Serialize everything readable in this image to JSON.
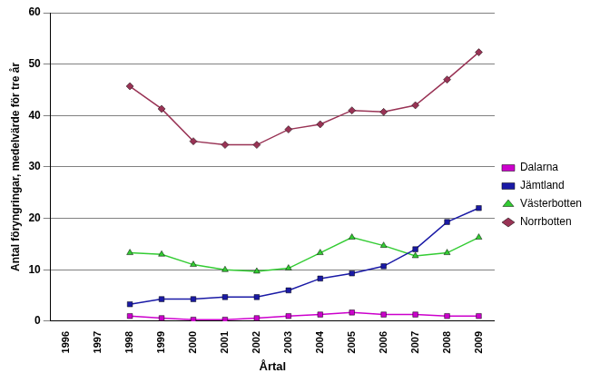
{
  "chart_data": {
    "type": "line",
    "x_label": "Årtal",
    "y_label": "Antal föryngringar, medelvärde för tre år",
    "categories": [
      "1996",
      "1997",
      "1998",
      "1999",
      "2000",
      "2001",
      "2002",
      "2003",
      "2004",
      "2005",
      "2006",
      "2007",
      "2008",
      "2009"
    ],
    "series": [
      {
        "name": "Dalarna",
        "color": "#cc00cc",
        "marker": "square",
        "values": [
          null,
          null,
          1.0,
          0.6,
          0.3,
          0.3,
          0.6,
          1.0,
          1.3,
          1.7,
          1.3,
          1.3,
          1.0,
          1.0
        ]
      },
      {
        "name": "Jämtland",
        "color": "#1a1aa6",
        "marker": "square",
        "values": [
          null,
          null,
          3.3,
          4.3,
          4.3,
          4.7,
          4.7,
          6.0,
          8.3,
          9.3,
          10.7,
          14.0,
          19.3,
          22.0
        ]
      },
      {
        "name": "Västerbotten",
        "color": "#33cc33",
        "marker": "triangle",
        "values": [
          null,
          null,
          13.3,
          13.0,
          11.0,
          10.0,
          9.7,
          10.3,
          13.3,
          16.3,
          14.7,
          12.7,
          13.3,
          16.3
        ]
      },
      {
        "name": "Norrbotten",
        "color": "#993355",
        "marker": "diamond",
        "values": [
          null,
          null,
          45.7,
          41.3,
          35.0,
          34.3,
          34.3,
          37.3,
          38.3,
          41.0,
          40.7,
          42.0,
          47.0,
          52.3
        ]
      }
    ],
    "ylim": [
      0,
      60
    ],
    "yticks": [
      0,
      10,
      20,
      30,
      40,
      50,
      60
    ],
    "grid": true,
    "legend": "right"
  }
}
